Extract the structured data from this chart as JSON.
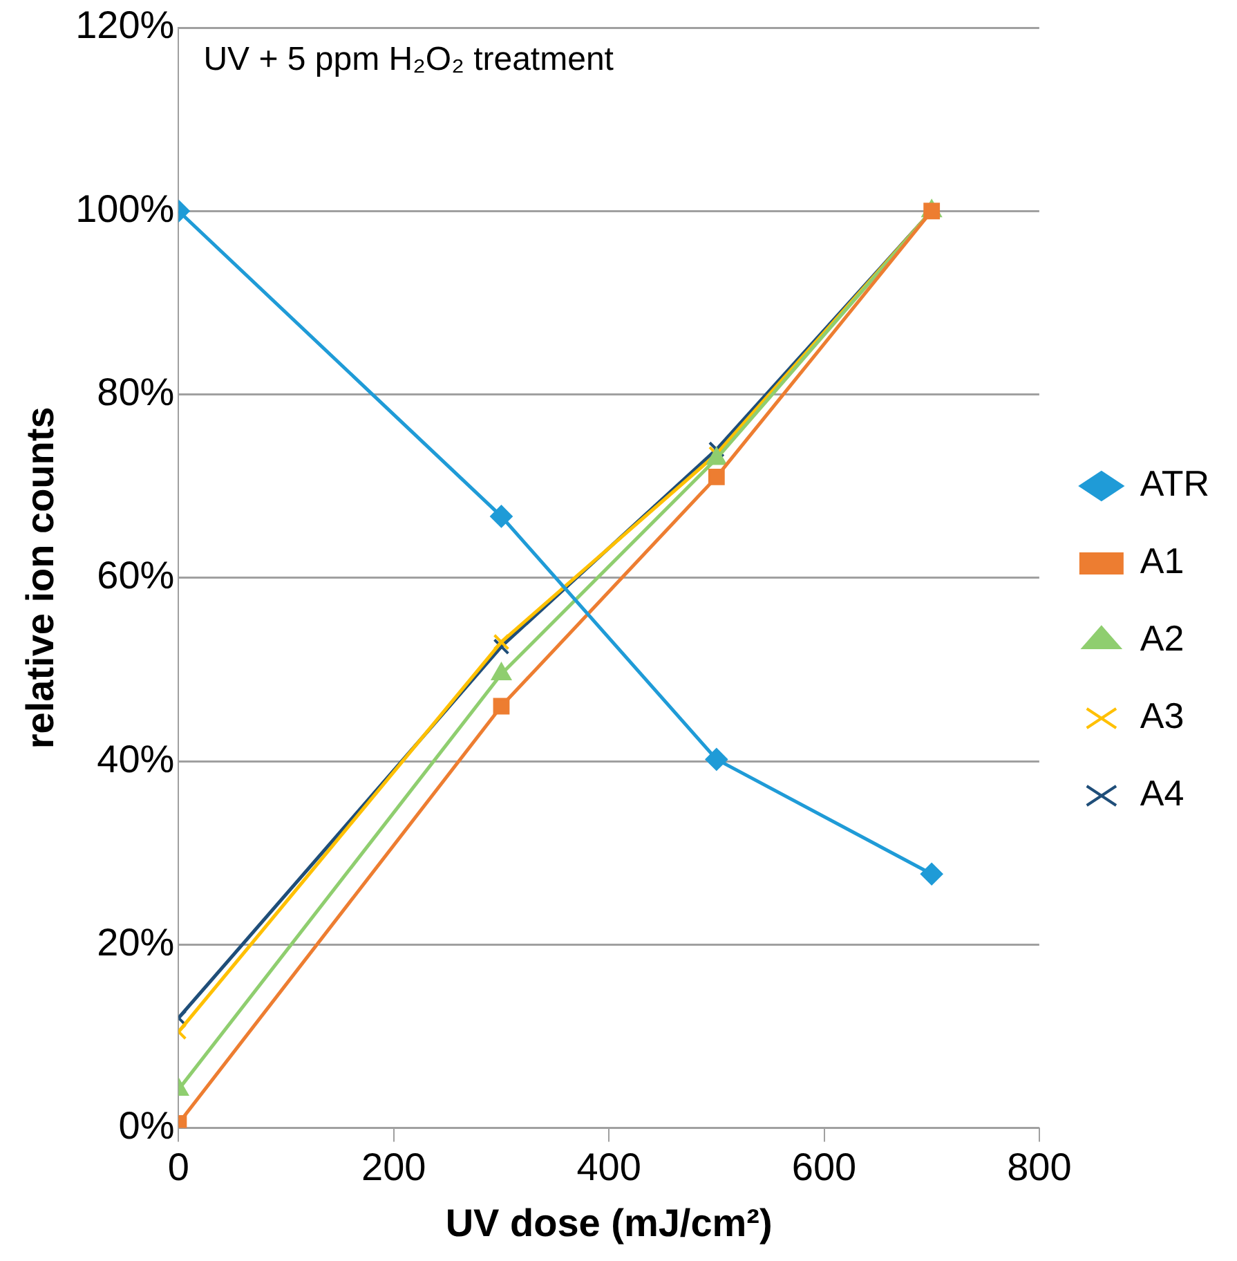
{
  "chart_data": {
    "type": "line",
    "title": "UV + 5 ppm H₂O₂ treatment",
    "xlabel": "UV dose (mJ/cm²)",
    "ylabel": "relative ion counts",
    "x": [
      0,
      300,
      500,
      700
    ],
    "series": [
      {
        "name": "ATR",
        "color": "#1f9bd7",
        "marker": "diamond",
        "values": [
          100,
          66.7,
          40.2,
          27.7
        ]
      },
      {
        "name": "A1",
        "color": "#ed7d31",
        "marker": "square",
        "values": [
          0.5,
          46,
          71,
          100
        ]
      },
      {
        "name": "A2",
        "color": "#8fce6f",
        "marker": "triangle",
        "values": [
          4.2,
          49.5,
          73,
          100
        ]
      },
      {
        "name": "A3",
        "color": "#ffc000",
        "marker": "cross",
        "values": [
          10.5,
          53,
          73.5,
          100
        ]
      },
      {
        "name": "A4",
        "color": "#1f4e79",
        "marker": "cross",
        "values": [
          12,
          52.5,
          74,
          100
        ]
      }
    ],
    "xlim": [
      0,
      800
    ],
    "xticks": [
      0,
      200,
      400,
      600,
      800
    ],
    "ylim": [
      0,
      120
    ],
    "yticks": [
      {
        "value": 0,
        "label": "0%"
      },
      {
        "value": 20,
        "label": "20%"
      },
      {
        "value": 40,
        "label": "40%"
      },
      {
        "value": 60,
        "label": "60%"
      },
      {
        "value": 80,
        "label": "80%"
      },
      {
        "value": 100,
        "label": "100%"
      },
      {
        "value": 120,
        "label": "120%"
      }
    ],
    "grid": "y",
    "legend": "right",
    "line_style": "solid"
  }
}
